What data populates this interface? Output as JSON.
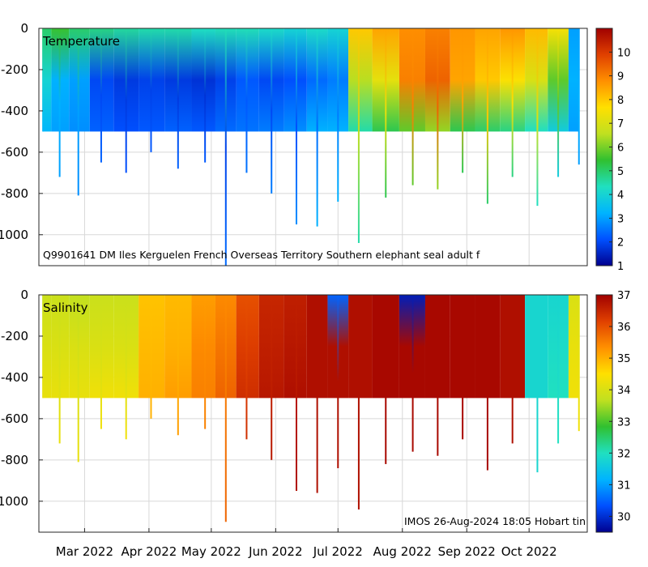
{
  "chart_data": [
    {
      "type": "heatmap",
      "title": "Temperature",
      "variable": "Temperature",
      "annotation": "Q9901641 DM Iles Kerguelen French Overseas Territory Southern elephant seal adult f",
      "xlabel": "",
      "ylabel": "",
      "ylim": [
        -1150,
        0
      ],
      "yticks": [
        0,
        -200,
        -400,
        -600,
        -800,
        -1000
      ],
      "ytick_labels": [
        "0",
        "-200",
        "-400",
        "-600",
        "-800",
        "-1000"
      ],
      "xlim_days": [
        -22,
        242
      ],
      "grid": true,
      "colorbar": {
        "vmin": 1,
        "vmax": 11,
        "ticks": [
          1,
          2,
          3,
          4,
          5,
          6,
          7,
          8,
          9,
          10
        ],
        "tick_labels": [
          "1",
          "2",
          "3",
          "4",
          "5",
          "6",
          "7",
          "8",
          "9",
          "10"
        ]
      },
      "profiles": [
        {
          "day": -20,
          "depth": 500,
          "values": [
            5.0,
            4.0,
            3.3
          ]
        },
        {
          "day": -12,
          "depth": 720,
          "values": [
            5.5,
            3.2,
            3.0
          ]
        },
        {
          "day": -3,
          "depth": 810,
          "values": [
            5.0,
            3.0,
            2.8
          ]
        },
        {
          "day": 8,
          "depth": 650,
          "values": [
            4.8,
            2.0,
            2.3
          ]
        },
        {
          "day": 20,
          "depth": 700,
          "values": [
            4.6,
            1.8,
            2.1
          ]
        },
        {
          "day": 32,
          "depth": 600,
          "values": [
            4.5,
            1.9,
            2.2
          ]
        },
        {
          "day": 45,
          "depth": 680,
          "values": [
            4.5,
            1.8,
            2.3
          ]
        },
        {
          "day": 58,
          "depth": 650,
          "values": [
            4.3,
            1.7,
            2.2
          ]
        },
        {
          "day": 68,
          "depth": 1150,
          "values": [
            4.4,
            1.9,
            2.4
          ]
        },
        {
          "day": 78,
          "depth": 700,
          "values": [
            4.4,
            2.2,
            2.5
          ]
        },
        {
          "day": 90,
          "depth": 800,
          "values": [
            4.2,
            2.0,
            2.6
          ]
        },
        {
          "day": 102,
          "depth": 950,
          "values": [
            4.0,
            2.1,
            2.8
          ]
        },
        {
          "day": 112,
          "depth": 960,
          "values": [
            4.2,
            2.4,
            3.2
          ]
        },
        {
          "day": 122,
          "depth": 840,
          "values": [
            4.0,
            2.6,
            3.2
          ]
        },
        {
          "day": 132,
          "depth": 1040,
          "values": [
            8.0,
            6.5,
            4.5
          ]
        },
        {
          "day": 145,
          "depth": 820,
          "values": [
            8.5,
            7.2,
            5.2
          ]
        },
        {
          "day": 158,
          "depth": 760,
          "values": [
            8.8,
            9.0,
            5.8
          ]
        },
        {
          "day": 170,
          "depth": 780,
          "values": [
            9.0,
            9.4,
            6.2
          ]
        },
        {
          "day": 182,
          "depth": 700,
          "values": [
            8.7,
            8.5,
            5.2
          ]
        },
        {
          "day": 194,
          "depth": 850,
          "values": [
            8.5,
            8.0,
            5.0
          ]
        },
        {
          "day": 206,
          "depth": 720,
          "values": [
            8.7,
            7.6,
            4.8
          ]
        },
        {
          "day": 218,
          "depth": 860,
          "values": [
            8.2,
            7.0,
            4.3
          ]
        },
        {
          "day": 228,
          "depth": 720,
          "values": [
            7.5,
            5.8,
            3.8
          ]
        },
        {
          "day": 238,
          "depth": 660,
          "values": [
            3.0,
            3.2,
            3.0
          ]
        }
      ]
    },
    {
      "type": "heatmap",
      "title": "Salinity",
      "variable": "Salinity",
      "annotation": "IMOS 26-Aug-2024 18:05 Hobart tin",
      "xlabel": "",
      "ylabel": "",
      "ylim": [
        -1150,
        0
      ],
      "yticks": [
        0,
        -200,
        -400,
        -600,
        -800,
        -1000
      ],
      "ytick_labels": [
        "0",
        "-200",
        "-400",
        "-600",
        "-800",
        "-1000"
      ],
      "xlim_days": [
        -22,
        242
      ],
      "grid": true,
      "colorbar": {
        "vmin": 29.5,
        "vmax": 37,
        "ticks": [
          30,
          31,
          32,
          33,
          34,
          35,
          36,
          37
        ],
        "tick_labels": [
          "30",
          "31",
          "32",
          "33",
          "34",
          "35",
          "36",
          "37"
        ]
      },
      "profiles": [
        {
          "day": -20,
          "depth": 500,
          "values": [
            33.8,
            34.0,
            34.2
          ]
        },
        {
          "day": -12,
          "depth": 720,
          "values": [
            33.8,
            34.0,
            34.2
          ]
        },
        {
          "day": -3,
          "depth": 810,
          "values": [
            33.7,
            34.0,
            34.2
          ]
        },
        {
          "day": 8,
          "depth": 650,
          "values": [
            33.8,
            34.0,
            34.3
          ]
        },
        {
          "day": 20,
          "depth": 700,
          "values": [
            33.8,
            34.0,
            34.3
          ]
        },
        {
          "day": 32,
          "depth": 600,
          "values": [
            34.8,
            34.9,
            35.0
          ]
        },
        {
          "day": 45,
          "depth": 680,
          "values": [
            34.9,
            35.0,
            35.2
          ]
        },
        {
          "day": 58,
          "depth": 650,
          "values": [
            35.2,
            35.4,
            35.5
          ]
        },
        {
          "day": 68,
          "depth": 1100,
          "values": [
            35.4,
            35.6,
            35.8
          ]
        },
        {
          "day": 78,
          "depth": 700,
          "values": [
            36.0,
            36.2,
            36.4
          ]
        },
        {
          "day": 90,
          "depth": 800,
          "values": [
            36.5,
            36.6,
            36.7
          ]
        },
        {
          "day": 102,
          "depth": 950,
          "values": [
            36.6,
            36.7,
            36.8
          ]
        },
        {
          "day": 112,
          "depth": 960,
          "values": [
            36.8,
            36.8,
            36.8
          ]
        },
        {
          "day": 122,
          "depth": 840,
          "values": [
            30.5,
            36.8,
            36.8
          ]
        },
        {
          "day": 132,
          "depth": 1040,
          "values": [
            36.8,
            36.8,
            36.8
          ]
        },
        {
          "day": 145,
          "depth": 820,
          "values": [
            36.9,
            36.9,
            36.9
          ]
        },
        {
          "day": 158,
          "depth": 760,
          "values": [
            29.8,
            36.9,
            36.9
          ]
        },
        {
          "day": 170,
          "depth": 780,
          "values": [
            36.9,
            36.9,
            36.9
          ]
        },
        {
          "day": 182,
          "depth": 700,
          "values": [
            36.9,
            36.9,
            36.9
          ]
        },
        {
          "day": 194,
          "depth": 850,
          "values": [
            36.9,
            36.9,
            36.9
          ]
        },
        {
          "day": 206,
          "depth": 720,
          "values": [
            36.8,
            36.8,
            36.8
          ]
        },
        {
          "day": 218,
          "depth": 860,
          "values": [
            31.8,
            31.8,
            31.8
          ]
        },
        {
          "day": 228,
          "depth": 720,
          "values": [
            31.8,
            31.9,
            32.0
          ]
        },
        {
          "day": 238,
          "depth": 660,
          "values": [
            34.0,
            34.2,
            34.3
          ]
        }
      ]
    }
  ],
  "x_axis": {
    "ticks": [
      {
        "day": 0,
        "label": "Mar 2022"
      },
      {
        "day": 31,
        "label": "Apr 2022"
      },
      {
        "day": 61,
        "label": "May 2022"
      },
      {
        "day": 92,
        "label": "Jun 2022"
      },
      {
        "day": 122,
        "label": "Jul 2022"
      },
      {
        "day": 153,
        "label": "Aug 2022"
      },
      {
        "day": 184,
        "label": "Sep 2022"
      },
      {
        "day": 214,
        "label": "Oct 2022"
      }
    ]
  },
  "colormap": [
    "#00008f",
    "#0050ff",
    "#00b4ff",
    "#20e0c0",
    "#30c030",
    "#c0e020",
    "#ffe000",
    "#ff9000",
    "#e04000",
    "#a00000"
  ],
  "colors": {
    "grid": "#d8d8d8",
    "axis": "#262626",
    "background": "#ffffff"
  }
}
